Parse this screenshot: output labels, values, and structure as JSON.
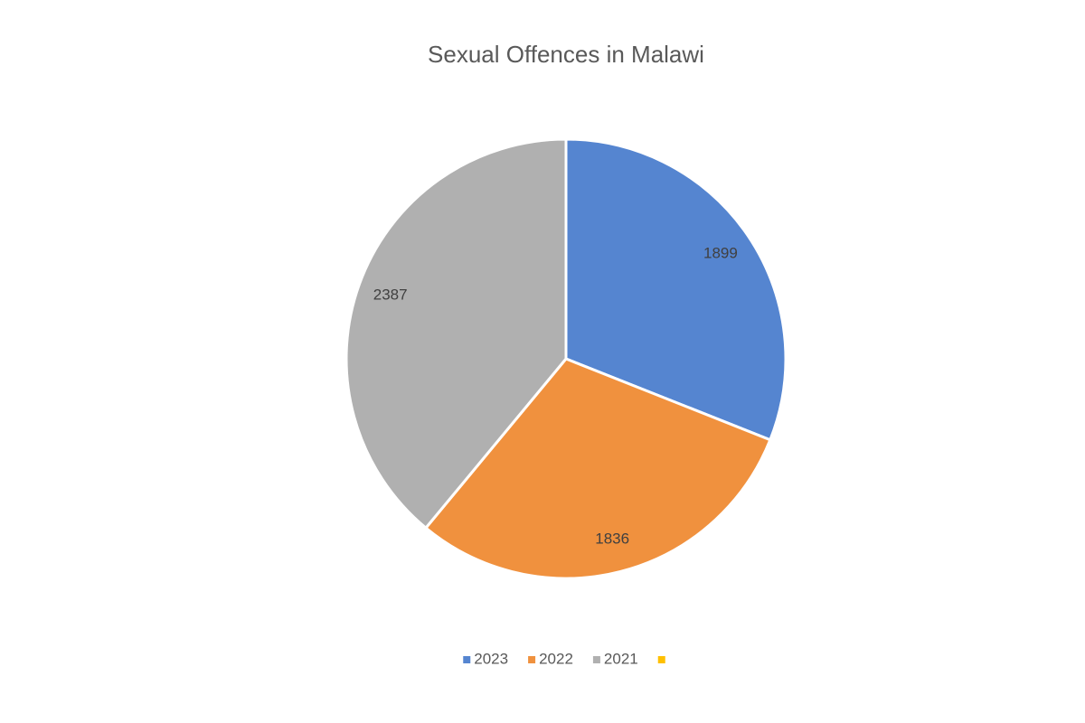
{
  "chart_data": {
    "type": "pie",
    "title": "Sexual Offences in Malawi",
    "categories": [
      "2023",
      "2022",
      "2021",
      null
    ],
    "values": [
      1899,
      1836,
      2387,
      null
    ],
    "colors": [
      "#5585d0",
      "#f0913e",
      "#b0b0b0",
      "#ffc000"
    ],
    "legend": "bottom"
  }
}
